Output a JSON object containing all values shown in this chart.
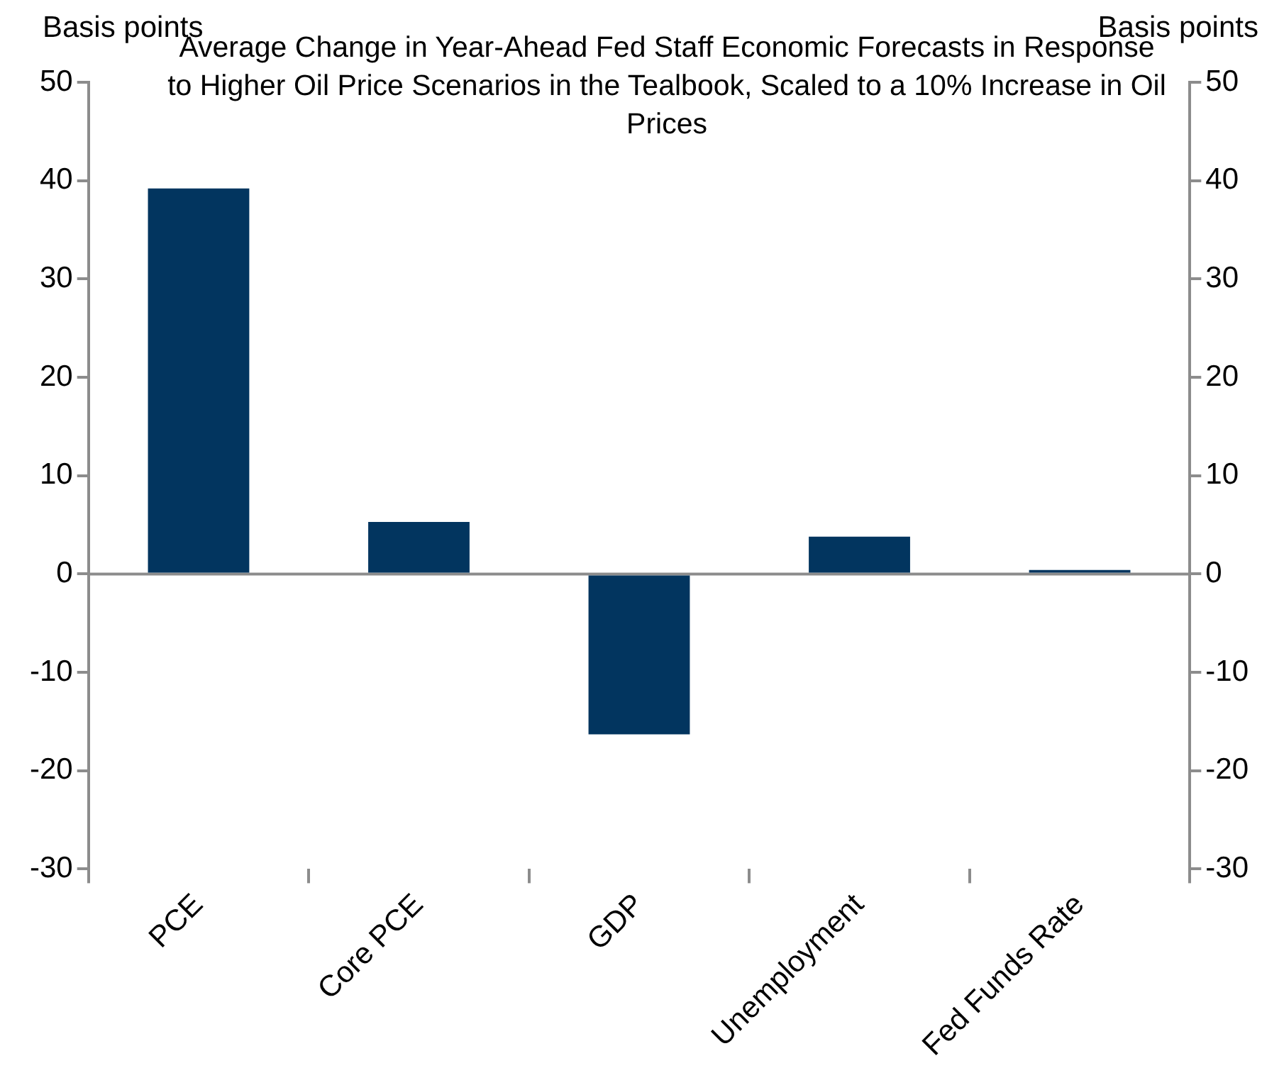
{
  "chart_data": {
    "type": "bar",
    "title": "Average Change in Year-Ahead Fed Staff Economic Forecasts in Response to Higher Oil Price Scenarios in the Tealbook, Scaled to a 10% Increase in Oil Prices",
    "ylabel": "Basis points",
    "y2label": "Basis points",
    "categories": [
      "PCE",
      "Core PCE",
      "GDP",
      "Unemployment",
      "Fed Funds Rate"
    ],
    "values": [
      39.2,
      5.3,
      -16.3,
      3.8,
      0.4
    ],
    "color": "#02355f",
    "ylim": [
      -30,
      50
    ],
    "yticks": [
      -30,
      -20,
      -10,
      0,
      10,
      20,
      30,
      40,
      50
    ],
    "y2lim": [
      -30,
      50
    ],
    "y2ticks": [
      -30,
      -20,
      -10,
      0,
      10,
      20,
      30,
      40,
      50
    ],
    "legend": false
  }
}
